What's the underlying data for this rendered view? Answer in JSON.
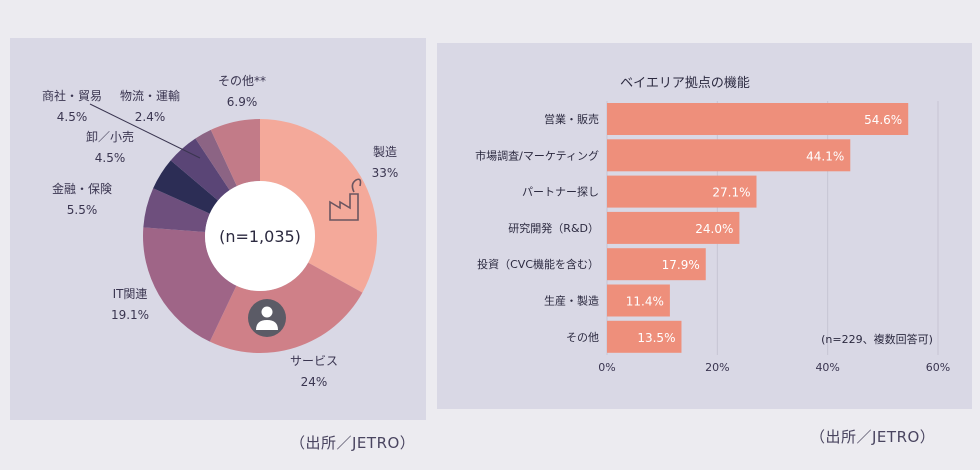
{
  "source_left": "（出所／JETRO）",
  "source_right": "（出所／JETRO）",
  "chart_data": [
    {
      "type": "pie",
      "variant": "donut",
      "center_label": "(n=1,035)",
      "slices": [
        {
          "name": "製造",
          "value_label": "33%",
          "value": 33,
          "color": "#f4a99a"
        },
        {
          "name": "サービス",
          "value_label": "24%",
          "value": 24,
          "color": "#cf8088"
        },
        {
          "name": "IT関連",
          "value_label": "19.1%",
          "value": 19.1,
          "color": "#9f6587"
        },
        {
          "name": "金融・保険",
          "value_label": "5.5%",
          "value": 5.5,
          "color": "#6e4f7d"
        },
        {
          "name": "卸／小売",
          "value_label": "4.5%",
          "value": 4.5,
          "color": "#2c2d55"
        },
        {
          "name": "商社・貿易",
          "value_label": "4.5%",
          "value": 4.5,
          "color": "#5a4576"
        },
        {
          "name": "物流・運輸",
          "value_label": "2.4%",
          "value": 2.4,
          "color": "#8c6484"
        },
        {
          "name": "その他**",
          "value_label": "6.9%",
          "value": 6.9,
          "color": "#c27b88"
        }
      ],
      "icons": [
        "factory-icon",
        "person-icon"
      ]
    },
    {
      "type": "bar",
      "orientation": "horizontal",
      "title": "ベイエリア拠点の機能",
      "categories": [
        "営業・販売",
        "市場調査/マーケティング",
        "パートナー探し",
        "研究開発（R&D）",
        "投資（CVC機能を含む）",
        "生産・製造",
        "その他"
      ],
      "values": [
        54.6,
        44.1,
        27.1,
        24.0,
        17.9,
        11.4,
        13.5
      ],
      "value_labels": [
        "54.6%",
        "44.1%",
        "27.1%",
        "24.0%",
        "17.9%",
        "11.4%",
        "13.5%"
      ],
      "xlim": [
        0,
        60
      ],
      "xticks": [
        "0%",
        "20%",
        "40%",
        "60%"
      ],
      "note": "(n=229、複数回答可)",
      "bar_color": "#ee8f7b",
      "grid": true
    }
  ]
}
